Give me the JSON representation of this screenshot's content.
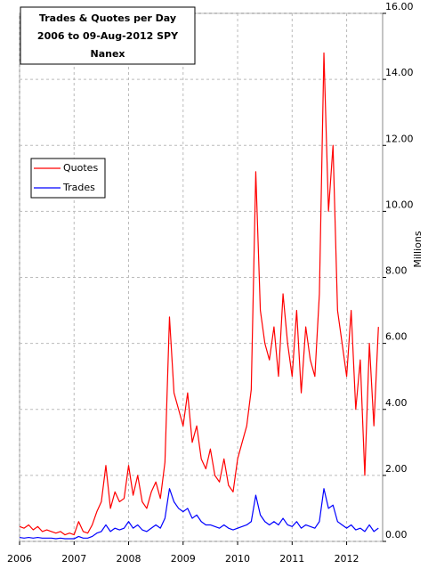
{
  "chart_data": {
    "type": "line",
    "title": [
      "Trades & Quotes per Day",
      "2006 to 09-Aug-2012 SPY",
      "Nanex"
    ],
    "y_label": "Millions",
    "x": [
      2006,
      2006.083,
      2006.167,
      2006.25,
      2006.333,
      2006.417,
      2006.5,
      2006.583,
      2006.667,
      2006.75,
      2006.833,
      2006.917,
      2007,
      2007.083,
      2007.167,
      2007.25,
      2007.333,
      2007.417,
      2007.5,
      2007.583,
      2007.667,
      2007.75,
      2007.833,
      2007.917,
      2008,
      2008.083,
      2008.167,
      2008.25,
      2008.333,
      2008.417,
      2008.5,
      2008.583,
      2008.667,
      2008.75,
      2008.833,
      2008.917,
      2009,
      2009.083,
      2009.167,
      2009.25,
      2009.333,
      2009.417,
      2009.5,
      2009.583,
      2009.667,
      2009.75,
      2009.833,
      2009.917,
      2010,
      2010.083,
      2010.167,
      2010.25,
      2010.333,
      2010.417,
      2010.5,
      2010.583,
      2010.667,
      2010.75,
      2010.833,
      2010.917,
      2011,
      2011.083,
      2011.167,
      2011.25,
      2011.333,
      2011.417,
      2011.5,
      2011.583,
      2011.667,
      2011.75,
      2011.833,
      2011.917,
      2012,
      2012.083,
      2012.167,
      2012.25,
      2012.333,
      2012.417,
      2012.5,
      2012.583
    ],
    "series": [
      {
        "name": "Quotes",
        "color": "#ff0000",
        "values": [
          0.45,
          0.4,
          0.5,
          0.35,
          0.45,
          0.3,
          0.35,
          0.3,
          0.25,
          0.3,
          0.2,
          0.25,
          0.2,
          0.6,
          0.3,
          0.25,
          0.5,
          0.9,
          1.2,
          2.3,
          1.0,
          1.5,
          1.2,
          1.3,
          2.3,
          1.4,
          2.0,
          1.2,
          1.0,
          1.5,
          1.8,
          1.3,
          2.4,
          6.8,
          4.5,
          4.0,
          3.5,
          4.5,
          3.0,
          3.5,
          2.5,
          2.2,
          2.8,
          2.0,
          1.8,
          2.5,
          1.7,
          1.5,
          2.5,
          3.0,
          3.5,
          4.6,
          11.2,
          7.0,
          6.0,
          5.5,
          6.5,
          5.0,
          7.5,
          6.0,
          5.0,
          7.0,
          4.5,
          6.5,
          5.5,
          5.0,
          7.5,
          14.8,
          10.0,
          12.0,
          7.0,
          6.0,
          5.0,
          7.0,
          4.0,
          5.5,
          2.0,
          6.0,
          3.5,
          6.5
        ]
      },
      {
        "name": "Trades",
        "color": "#0000ff",
        "values": [
          0.12,
          0.1,
          0.12,
          0.1,
          0.12,
          0.1,
          0.1,
          0.1,
          0.08,
          0.1,
          0.08,
          0.08,
          0.08,
          0.15,
          0.1,
          0.1,
          0.15,
          0.25,
          0.3,
          0.5,
          0.3,
          0.4,
          0.35,
          0.4,
          0.6,
          0.4,
          0.5,
          0.35,
          0.3,
          0.4,
          0.5,
          0.4,
          0.7,
          1.6,
          1.2,
          1.0,
          0.9,
          1.0,
          0.7,
          0.8,
          0.6,
          0.5,
          0.5,
          0.45,
          0.4,
          0.5,
          0.4,
          0.35,
          0.4,
          0.45,
          0.5,
          0.6,
          1.4,
          0.8,
          0.6,
          0.5,
          0.6,
          0.5,
          0.7,
          0.5,
          0.45,
          0.6,
          0.4,
          0.5,
          0.45,
          0.4,
          0.6,
          1.6,
          1.0,
          1.1,
          0.6,
          0.5,
          0.4,
          0.5,
          0.35,
          0.4,
          0.3,
          0.5,
          0.3,
          0.4
        ]
      }
    ],
    "xlim": [
      2006,
      2012.66
    ],
    "xticks": [
      2006,
      2007,
      2008,
      2009,
      2010,
      2011,
      2012
    ],
    "ylim": [
      0,
      16
    ],
    "yticks": [
      {
        "value": 0,
        "label": "0.00"
      },
      {
        "value": 2,
        "label": "2.00"
      },
      {
        "value": 4,
        "label": "4.00"
      },
      {
        "value": 6,
        "label": "6.00"
      },
      {
        "value": 8,
        "label": "8.00"
      },
      {
        "value": 10,
        "label": "10.00"
      },
      {
        "value": 12,
        "label": "12.00"
      },
      {
        "value": 14,
        "label": "14.00"
      },
      {
        "value": 16,
        "label": "16.00"
      }
    ],
    "grid": true,
    "legend": "left"
  }
}
